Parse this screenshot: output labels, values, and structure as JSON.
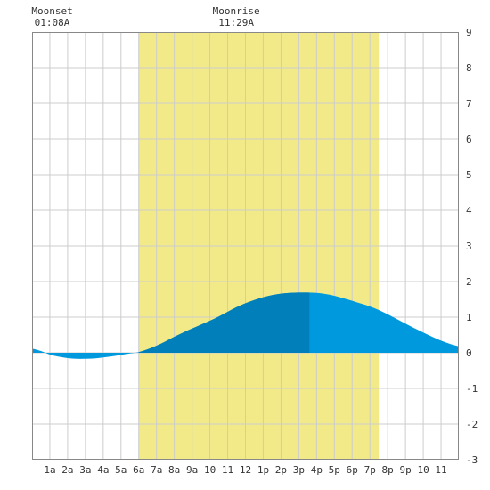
{
  "chart_data": {
    "type": "area",
    "x_unit": "hour of day",
    "x_range": [
      0,
      24
    ],
    "y_range": [
      -3,
      9
    ],
    "y_ticks": [
      -3,
      -2,
      -1,
      0,
      1,
      2,
      3,
      4,
      5,
      6,
      7,
      8,
      9
    ],
    "x_tick_labels": [
      "1a",
      "2a",
      "3a",
      "4a",
      "5a",
      "6a",
      "7a",
      "8a",
      "9a",
      "10",
      "11",
      "12",
      "1p",
      "2p",
      "3p",
      "4p",
      "5p",
      "6p",
      "7p",
      "8p",
      "9p",
      "10",
      "11"
    ],
    "grid": true,
    "daylight": {
      "start_hour": 6.0,
      "end_hour": 19.5
    },
    "moon_events": [
      {
        "label": "Moonset",
        "time": "01:08A",
        "hour": 1.13
      },
      {
        "label": "Moonrise",
        "time": "11:29A",
        "hour": 11.48
      }
    ],
    "highlight_range": [
      6.0,
      15.6
    ],
    "series": [
      {
        "x": [
          0,
          0.5,
          1,
          1.5,
          2,
          2.5,
          3,
          3.5,
          4,
          4.5,
          5,
          5.5,
          6,
          6.5,
          7,
          7.5,
          8,
          8.5,
          9,
          9.5,
          10,
          10.5,
          11,
          11.5,
          12,
          12.5,
          13,
          13.5,
          14,
          14.5,
          15,
          15.5,
          16,
          16.5,
          17,
          17.5,
          18,
          18.5,
          19,
          19.5,
          20,
          20.5,
          21,
          21.5,
          22,
          22.5,
          23,
          23.5,
          24
        ],
        "values": [
          0.12,
          0.05,
          -0.05,
          -0.11,
          -0.15,
          -0.17,
          -0.17,
          -0.16,
          -0.13,
          -0.1,
          -0.06,
          -0.02,
          0.02,
          0.1,
          0.2,
          0.32,
          0.45,
          0.57,
          0.68,
          0.79,
          0.9,
          1.02,
          1.15,
          1.28,
          1.39,
          1.48,
          1.56,
          1.62,
          1.66,
          1.68,
          1.69,
          1.69,
          1.68,
          1.65,
          1.6,
          1.53,
          1.46,
          1.38,
          1.3,
          1.2,
          1.08,
          0.95,
          0.82,
          0.69,
          0.57,
          0.45,
          0.34,
          0.25,
          0.18
        ]
      }
    ],
    "colors": {
      "daylight": "#f2ea88",
      "tide_fill": "#0099dd",
      "tide_highlight": "#007fba",
      "grid": "#cccccc",
      "axis": "#888888",
      "background": "#ffffff"
    }
  }
}
